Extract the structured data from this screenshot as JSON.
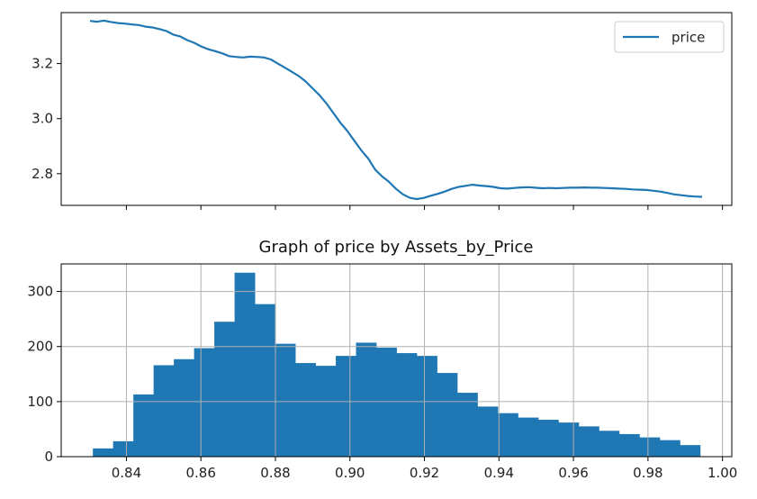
{
  "chart_data": [
    {
      "type": "line",
      "x_ticks_labeled": false,
      "y_ticks": [
        2.8,
        3.0,
        3.2
      ],
      "y_tick_labels": [
        "2.8",
        "3.0",
        "3.2"
      ],
      "ylim": [
        2.685,
        3.385
      ],
      "x_tick_count": 9,
      "legend": {
        "entries": [
          "price"
        ],
        "placement": "top-right"
      },
      "grid": false,
      "series": [
        {
          "name": "price",
          "color": "#1f77b4",
          "values": [
            3.355,
            3.352,
            3.356,
            3.351,
            3.347,
            3.345,
            3.342,
            3.34,
            3.334,
            3.331,
            3.325,
            3.318,
            3.305,
            3.298,
            3.285,
            3.275,
            3.262,
            3.252,
            3.245,
            3.237,
            3.227,
            3.224,
            3.222,
            3.225,
            3.224,
            3.222,
            3.215,
            3.2,
            3.185,
            3.17,
            3.155,
            3.135,
            3.11,
            3.085,
            3.055,
            3.02,
            2.985,
            2.955,
            2.92,
            2.885,
            2.855,
            2.815,
            2.79,
            2.77,
            2.745,
            2.725,
            2.712,
            2.708,
            2.712,
            2.72,
            2.727,
            2.735,
            2.745,
            2.752,
            2.756,
            2.76,
            2.757,
            2.755,
            2.752,
            2.747,
            2.746,
            2.748,
            2.75,
            2.751,
            2.749,
            2.747,
            2.748,
            2.747,
            2.748,
            2.749,
            2.749,
            2.75,
            2.749,
            2.749,
            2.748,
            2.747,
            2.746,
            2.745,
            2.743,
            2.742,
            2.741,
            2.738,
            2.735,
            2.73,
            2.725,
            2.722,
            2.719,
            2.717,
            2.716
          ]
        }
      ]
    },
    {
      "type": "bar",
      "title": "Graph of price by Assets_by_Price",
      "xlim": [
        0.8225,
        1.0025
      ],
      "ylim": [
        0,
        350
      ],
      "x_ticks": [
        0.84,
        0.86,
        0.88,
        0.9,
        0.92,
        0.94,
        0.96,
        0.98,
        1.0
      ],
      "x_tick_labels": [
        "0.84",
        "0.86",
        "0.88",
        "0.90",
        "0.92",
        "0.94",
        "0.96",
        "0.98",
        "1.00"
      ],
      "y_ticks": [
        0,
        100,
        200,
        300
      ],
      "y_tick_labels": [
        "0",
        "100",
        "200",
        "300"
      ],
      "grid": true,
      "color": "#1f77b4",
      "bin_start": 0.831,
      "bin_end": 0.994,
      "values": [
        15,
        28,
        113,
        166,
        177,
        197,
        245,
        334,
        277,
        205,
        170,
        165,
        183,
        207,
        198,
        188,
        183,
        152,
        116,
        91,
        79,
        71,
        67,
        62,
        55,
        47,
        41,
        35,
        30,
        21
      ]
    }
  ]
}
